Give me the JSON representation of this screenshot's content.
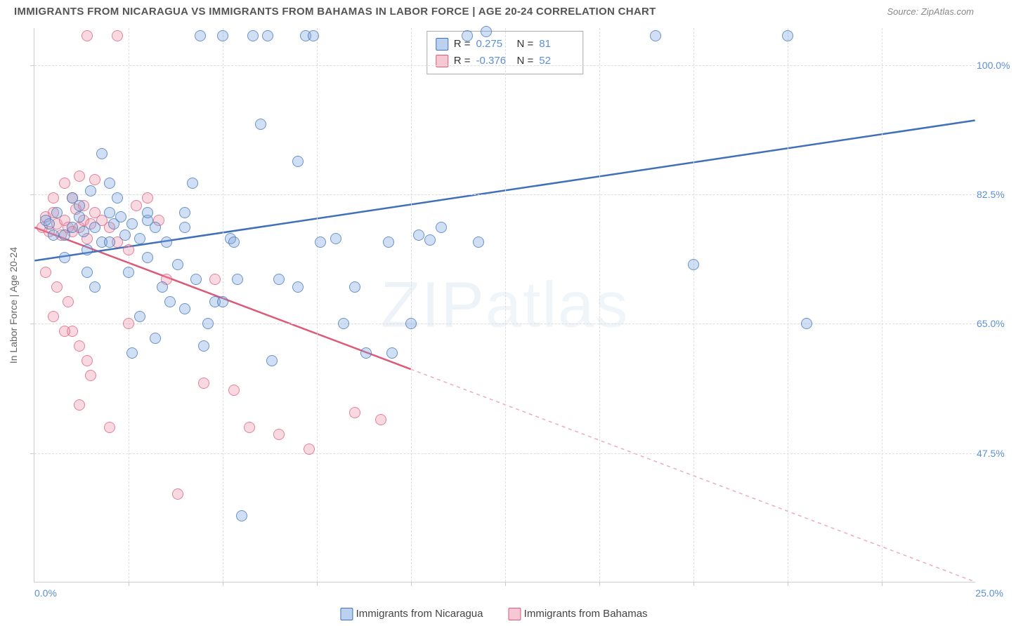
{
  "title": "IMMIGRANTS FROM NICARAGUA VS IMMIGRANTS FROM BAHAMAS IN LABOR FORCE | AGE 20-24 CORRELATION CHART",
  "source": "Source: ZipAtlas.com",
  "ylabel": "In Labor Force | Age 20-24",
  "watermark_a": "ZIP",
  "watermark_b": "atlas",
  "chart": {
    "type": "scatter",
    "xlim": [
      0,
      25
    ],
    "ylim": [
      30,
      105
    ],
    "yticks": [
      47.5,
      65.0,
      82.5,
      100.0
    ],
    "ytick_labels": [
      "47.5%",
      "65.0%",
      "82.5%",
      "100.0%"
    ],
    "xtick_left": "0.0%",
    "xtick_right": "25.0%",
    "xminor_ticks": [
      2.5,
      5.0,
      7.5,
      10.0,
      12.5,
      15.0,
      17.5,
      20.0,
      22.5
    ],
    "grid_color": "#dddddd",
    "background": "#ffffff",
    "series": {
      "nicaragua": {
        "label": "Immigrants from Nicaragua",
        "fill": "rgba(121,163,220,0.35)",
        "stroke": "#3f70b8",
        "R": "0.275",
        "N": "81",
        "regression": {
          "x1": 0,
          "y1": 73.5,
          "x2": 25,
          "y2": 92.5,
          "solid_until_x": 25
        },
        "points": [
          [
            0.4,
            78.5
          ],
          [
            0.6,
            80
          ],
          [
            0.8,
            77
          ],
          [
            1.0,
            78
          ],
          [
            1.2,
            79.5
          ],
          [
            1.3,
            77.5
          ],
          [
            1.6,
            78
          ],
          [
            1.8,
            76
          ],
          [
            2.0,
            80
          ],
          [
            2.1,
            78.5
          ],
          [
            2.4,
            77
          ],
          [
            2.6,
            78.5
          ],
          [
            2.8,
            76.5
          ],
          [
            3.0,
            79
          ],
          [
            3.2,
            78
          ],
          [
            1.5,
            83
          ],
          [
            2.2,
            82
          ],
          [
            2.0,
            84
          ],
          [
            1.8,
            88
          ],
          [
            1.4,
            72
          ],
          [
            1.6,
            70
          ],
          [
            2.5,
            72
          ],
          [
            3.0,
            74
          ],
          [
            3.5,
            76
          ],
          [
            3.8,
            73
          ],
          [
            4.0,
            78
          ],
          [
            4.2,
            84
          ],
          [
            4.4,
            104
          ],
          [
            4.5,
            62
          ],
          [
            4.8,
            68
          ],
          [
            5.0,
            104
          ],
          [
            5.2,
            76.5
          ],
          [
            5.3,
            76
          ],
          [
            5.8,
            104
          ],
          [
            6.0,
            92
          ],
          [
            6.2,
            104
          ],
          [
            6.3,
            60
          ],
          [
            5.5,
            39
          ],
          [
            4.6,
            65
          ],
          [
            3.2,
            63
          ],
          [
            2.8,
            66
          ],
          [
            2.6,
            61
          ],
          [
            7.0,
            87
          ],
          [
            7.2,
            104
          ],
          [
            7.4,
            104
          ],
          [
            7.6,
            76
          ],
          [
            8.0,
            76.5
          ],
          [
            8.2,
            65
          ],
          [
            8.5,
            70
          ],
          [
            8.8,
            61
          ],
          [
            9.4,
            76
          ],
          [
            9.5,
            61
          ],
          [
            10.0,
            65
          ],
          [
            10.2,
            77
          ],
          [
            10.5,
            76.3
          ],
          [
            10.8,
            78
          ],
          [
            11.5,
            104
          ],
          [
            11.8,
            76
          ],
          [
            12.0,
            104.5
          ],
          [
            16.5,
            104
          ],
          [
            17.5,
            73
          ],
          [
            20.0,
            104
          ],
          [
            20.5,
            65
          ],
          [
            3.4,
            70
          ],
          [
            3.6,
            68
          ],
          [
            4.0,
            67
          ],
          [
            4.3,
            71
          ],
          [
            5.0,
            68
          ],
          [
            5.4,
            71
          ],
          [
            6.5,
            71
          ],
          [
            7.0,
            70
          ],
          [
            1.0,
            82
          ],
          [
            1.2,
            81
          ],
          [
            0.8,
            74
          ],
          [
            1.4,
            75
          ],
          [
            0.5,
            77
          ],
          [
            0.3,
            79
          ],
          [
            2.3,
            79.5
          ],
          [
            3.0,
            80
          ],
          [
            2.0,
            76
          ],
          [
            4.0,
            80
          ]
        ]
      },
      "bahamas": {
        "label": "Immigrants from Bahamas",
        "fill": "rgba(238,145,169,0.35)",
        "stroke": "#dc5a78",
        "R": "-0.376",
        "N": "52",
        "regression": {
          "x1": 0,
          "y1": 78.0,
          "x2": 25,
          "y2": 30.0,
          "solid_until_x": 10
        },
        "points": [
          [
            0.2,
            78
          ],
          [
            0.3,
            79.5
          ],
          [
            0.4,
            77.5
          ],
          [
            0.5,
            80
          ],
          [
            0.6,
            78.5
          ],
          [
            0.7,
            77
          ],
          [
            0.8,
            79
          ],
          [
            0.9,
            78
          ],
          [
            1.0,
            77.5
          ],
          [
            1.1,
            80.5
          ],
          [
            1.2,
            78
          ],
          [
            1.3,
            79
          ],
          [
            1.4,
            76.5
          ],
          [
            1.5,
            78.5
          ],
          [
            0.5,
            82
          ],
          [
            0.8,
            84
          ],
          [
            1.2,
            85
          ],
          [
            1.6,
            84.5
          ],
          [
            0.3,
            72
          ],
          [
            0.6,
            70
          ],
          [
            0.9,
            68
          ],
          [
            1.0,
            64
          ],
          [
            1.2,
            62
          ],
          [
            1.4,
            60
          ],
          [
            1.0,
            82
          ],
          [
            1.3,
            81
          ],
          [
            1.6,
            80
          ],
          [
            1.8,
            79
          ],
          [
            2.0,
            78
          ],
          [
            2.2,
            76
          ],
          [
            2.5,
            75
          ],
          [
            2.7,
            81
          ],
          [
            3.0,
            82
          ],
          [
            3.3,
            79
          ],
          [
            1.4,
            104
          ],
          [
            2.2,
            104
          ],
          [
            0.5,
            66
          ],
          [
            0.8,
            64
          ],
          [
            1.2,
            54
          ],
          [
            1.5,
            58
          ],
          [
            2.0,
            51
          ],
          [
            2.5,
            65
          ],
          [
            3.5,
            71
          ],
          [
            3.8,
            42
          ],
          [
            4.5,
            57
          ],
          [
            4.8,
            71
          ],
          [
            5.3,
            56
          ],
          [
            5.7,
            51
          ],
          [
            6.5,
            50
          ],
          [
            7.3,
            48
          ],
          [
            8.5,
            53
          ],
          [
            9.2,
            52
          ]
        ]
      }
    }
  },
  "stats_legend": {
    "rows": [
      {
        "swatch": "nic",
        "R": "0.275",
        "N": "81"
      },
      {
        "swatch": "bah",
        "R": "-0.376",
        "N": "52"
      }
    ],
    "r_label": "R =",
    "n_label": "N ="
  }
}
